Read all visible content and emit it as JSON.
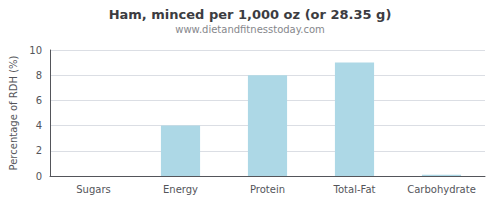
{
  "chart_data": {
    "type": "bar",
    "title": "Ham, minced per 1,000 oz (or 28.35 g)",
    "subtitle": "www.dietandfitnesstoday.com",
    "categories": [
      "Sugars",
      "Energy",
      "Protein",
      "Total-Fat",
      "Carbohydrate"
    ],
    "values": [
      0,
      4,
      8,
      9,
      0.1
    ],
    "color": "#ADD8E6",
    "ylabel": "Percentage of RDH (%)",
    "ylim": [
      0,
      10
    ],
    "yticks": [
      0,
      2,
      4,
      6,
      8,
      10
    ],
    "grid": true
  }
}
